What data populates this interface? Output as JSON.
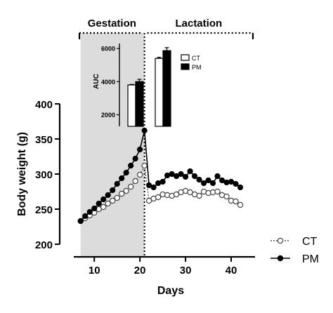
{
  "chart_data": [
    {
      "type": "line",
      "xlabel": "Days",
      "ylabel": "Body weight (g)",
      "xlim": [
        5.5,
        44
      ],
      "ylim": [
        200,
        400
      ],
      "x_ticks": [
        "10",
        "20",
        "30",
        "40"
      ],
      "y_ticks": [
        "200",
        "250",
        "300",
        "350",
        "400"
      ],
      "periods": [
        {
          "label": "Gestation",
          "x_range": [
            7,
            21
          ],
          "shaded": true
        },
        {
          "label": "Lactation",
          "x_range": [
            21,
            42
          ],
          "shaded": false
        }
      ],
      "legend": {
        "placement": "bottom-right",
        "entries": [
          "CT",
          "PM"
        ]
      },
      "series": [
        {
          "name": "CT",
          "marker": "open-circle",
          "line_style": "dotted",
          "x": [
            7,
            8,
            9,
            10,
            11,
            12,
            13,
            14,
            15,
            16,
            17,
            18,
            19,
            20,
            21,
            22,
            23,
            24,
            25,
            26,
            27,
            28,
            29,
            30,
            31,
            32,
            33,
            34,
            35,
            36,
            37,
            38,
            39,
            40,
            41,
            42
          ],
          "y": [
            233,
            237,
            241,
            245,
            250,
            253,
            258,
            262,
            266,
            272,
            276,
            282,
            290,
            299,
            312,
            262,
            265,
            267,
            271,
            270,
            269,
            271,
            274,
            276,
            274,
            271,
            269,
            275,
            273,
            274,
            275,
            270,
            268,
            262,
            261,
            256
          ]
        },
        {
          "name": "PM",
          "marker": "filled-circle",
          "line_style": "solid",
          "x": [
            7,
            8,
            9,
            10,
            11,
            12,
            13,
            14,
            15,
            16,
            17,
            18,
            19,
            20,
            21,
            22,
            23,
            24,
            25,
            26,
            27,
            28,
            29,
            30,
            31,
            32,
            33,
            34,
            35,
            36,
            37,
            38,
            39,
            40,
            41,
            42
          ],
          "y": [
            233,
            240,
            246,
            251,
            258,
            264,
            270,
            277,
            286,
            294,
            302,
            312,
            322,
            335,
            362,
            284,
            281,
            287,
            289,
            298,
            300,
            297,
            300,
            296,
            304,
            297,
            292,
            287,
            291,
            287,
            297,
            291,
            288,
            289,
            286,
            281
          ]
        }
      ]
    },
    {
      "type": "bar",
      "ylabel": "AUC",
      "ylim": [
        1300,
        6300
      ],
      "y_ticks": [
        "2000",
        "4000",
        "6000"
      ],
      "groups": [
        "Gestation",
        "Lactation"
      ],
      "legend": {
        "placement": "top-right",
        "entries": [
          "CT",
          "PM"
        ]
      },
      "series": [
        {
          "name": "CT",
          "color": "#ffffff",
          "values": [
            3800,
            5400
          ],
          "errors": [
            30,
            70
          ]
        },
        {
          "name": "PM",
          "color": "#000000",
          "values": [
            4000,
            5870
          ],
          "errors": [
            140,
            180
          ]
        }
      ]
    }
  ]
}
